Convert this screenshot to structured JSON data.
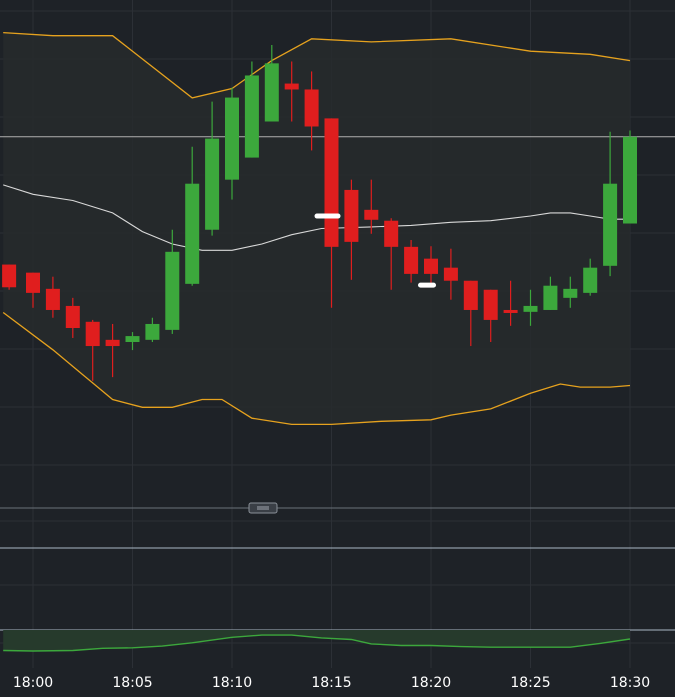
{
  "colors": {
    "background": "#1e2227",
    "band_fill": "#272a2d",
    "grid": "#2c3036",
    "up_candle": "#3ca83c",
    "down_candle": "#e01e1e",
    "bollinger_band": "#e6a21e",
    "moving_average": "#d9d9d9",
    "price_line": "#b0b0b0",
    "panel_line": "#aab8c6",
    "indicator_line": "#3ca83c",
    "indicator_fill": "#263a2c",
    "label": "#ffffff"
  },
  "chart_data": {
    "type": "candlestick",
    "x_ticks": [
      "18:00",
      "18:05",
      "18:10",
      "18:15",
      "18:20",
      "18:25",
      "18:30"
    ],
    "x_tick_minutes": [
      0,
      5,
      10,
      15,
      20,
      25,
      30
    ],
    "y_range": [
      0,
      100
    ],
    "horizontal_line": 70.5,
    "price_markers": [
      {
        "minute": 14.8,
        "value": 45.0
      },
      {
        "minute": 19.8,
        "value": 22.8
      }
    ],
    "candles": [
      {
        "minute": -1.2,
        "open": 29.4,
        "high": 29.4,
        "low": 21.3,
        "close": 22.1
      },
      {
        "minute": 0,
        "open": 26.8,
        "high": 26.8,
        "low": 15.5,
        "close": 20.3
      },
      {
        "minute": 1,
        "open": 21.6,
        "high": 25.5,
        "low": 12.3,
        "close": 14.8
      },
      {
        "minute": 2,
        "open": 16.1,
        "high": 18.7,
        "low": 5.8,
        "close": 9.0
      },
      {
        "minute": 3,
        "open": 11.0,
        "high": 11.6,
        "low": -8.0,
        "close": 3.2
      },
      {
        "minute": 4,
        "open": 5.2,
        "high": 10.3,
        "low": -6.8,
        "close": 3.2
      },
      {
        "minute": 5,
        "open": 4.5,
        "high": 7.7,
        "low": 1.9,
        "close": 6.4
      },
      {
        "minute": 6,
        "open": 5.2,
        "high": 12.3,
        "low": 4.5,
        "close": 10.3
      },
      {
        "minute": 7,
        "open": 8.4,
        "high": 40.6,
        "low": 7.1,
        "close": 33.5
      },
      {
        "minute": 8,
        "open": 23.2,
        "high": 67.3,
        "low": 22.6,
        "close": 55.4
      },
      {
        "minute": 9,
        "open": 40.6,
        "high": 81.8,
        "low": 38.7,
        "close": 69.9
      },
      {
        "minute": 10,
        "open": 56.7,
        "high": 86.3,
        "low": 50.3,
        "close": 83.1
      },
      {
        "minute": 11,
        "open": 63.8,
        "high": 94.7,
        "low": 63.8,
        "close": 90.2
      },
      {
        "minute": 12,
        "open": 75.4,
        "high": 100.0,
        "low": 75.4,
        "close": 94.1
      },
      {
        "minute": 13,
        "open": 87.6,
        "high": 94.7,
        "low": 75.4,
        "close": 85.7
      },
      {
        "minute": 14,
        "open": 85.7,
        "high": 91.5,
        "low": 66.1,
        "close": 73.8
      },
      {
        "minute": 15,
        "open": 76.4,
        "high": 76.4,
        "low": 15.5,
        "close": 35.1
      },
      {
        "minute": 16,
        "open": 53.4,
        "high": 56.7,
        "low": 24.5,
        "close": 36.7
      },
      {
        "minute": 17,
        "open": 47.0,
        "high": 56.7,
        "low": 39.3,
        "close": 43.8
      },
      {
        "minute": 18,
        "open": 43.5,
        "high": 44.3,
        "low": 21.3,
        "close": 35.1
      },
      {
        "minute": 19,
        "open": 35.1,
        "high": 37.3,
        "low": 23.6,
        "close": 26.4
      },
      {
        "minute": 20,
        "open": 31.3,
        "high": 35.3,
        "low": 22.6,
        "close": 26.4
      },
      {
        "minute": 21,
        "open": 28.4,
        "high": 34.5,
        "low": 18.1,
        "close": 24.2
      },
      {
        "minute": 22,
        "open": 24.2,
        "high": 24.2,
        "low": 3.2,
        "close": 14.8
      },
      {
        "minute": 23,
        "open": 21.3,
        "high": 21.3,
        "low": 4.5,
        "close": 11.6
      },
      {
        "minute": 24,
        "open": 14.8,
        "high": 24.2,
        "low": 9.7,
        "close": 14.2
      },
      {
        "minute": 25,
        "open": 14.2,
        "high": 21.3,
        "low": 9.7,
        "close": 16.1
      },
      {
        "minute": 26,
        "open": 14.8,
        "high": 25.5,
        "low": 14.8,
        "close": 22.6
      },
      {
        "minute": 27,
        "open": 18.7,
        "high": 25.5,
        "low": 15.5,
        "close": 21.6
      },
      {
        "minute": 28,
        "open": 20.3,
        "high": 31.3,
        "low": 19.4,
        "close": 28.4
      },
      {
        "minute": 29,
        "open": 29.0,
        "high": 72.1,
        "low": 25.7,
        "close": 55.4
      },
      {
        "minute": 30,
        "open": 42.6,
        "high": 72.5,
        "low": 42.6,
        "close": 70.5
      }
    ],
    "upper_band": [
      [
        -1.5,
        104.0
      ],
      [
        1.0,
        103.0
      ],
      [
        4.0,
        103.0
      ],
      [
        8.0,
        83.0
      ],
      [
        10.0,
        86.0
      ],
      [
        12.0,
        95.0
      ],
      [
        14.0,
        102.0
      ],
      [
        17.0,
        101.0
      ],
      [
        21.0,
        102.0
      ],
      [
        25.0,
        98.0
      ],
      [
        28.0,
        97.0
      ],
      [
        30.0,
        95.0
      ]
    ],
    "lower_band": [
      [
        -1.5,
        14.0
      ],
      [
        1.0,
        2.0
      ],
      [
        2.5,
        -6.0
      ],
      [
        4.0,
        -14.0
      ],
      [
        5.5,
        -16.5
      ],
      [
        7.0,
        -16.5
      ],
      [
        8.5,
        -14.0
      ],
      [
        9.5,
        -14.0
      ],
      [
        11.0,
        -20.0
      ],
      [
        13.0,
        -22.0
      ],
      [
        15.0,
        -22.0
      ],
      [
        17.5,
        -21.0
      ],
      [
        20.0,
        -20.5
      ],
      [
        21.0,
        -19.0
      ],
      [
        23.0,
        -17.0
      ],
      [
        25.0,
        -12.0
      ],
      [
        26.5,
        -9.0
      ],
      [
        27.5,
        -10.0
      ],
      [
        29.0,
        -10.0
      ],
      [
        30.0,
        -9.5
      ]
    ],
    "moving_average": [
      [
        -1.5,
        55.0
      ],
      [
        0.0,
        52.0
      ],
      [
        2.0,
        50.0
      ],
      [
        4.0,
        46.0
      ],
      [
        5.5,
        40.0
      ],
      [
        7.0,
        36.0
      ],
      [
        8.5,
        34.0
      ],
      [
        10.0,
        34.0
      ],
      [
        11.5,
        36.0
      ],
      [
        13.0,
        39.0
      ],
      [
        14.5,
        41.0
      ],
      [
        17.0,
        41.5
      ],
      [
        19.0,
        42.0
      ],
      [
        21.0,
        43.0
      ],
      [
        23.0,
        43.5
      ],
      [
        25.0,
        45.0
      ],
      [
        26.0,
        46.0
      ],
      [
        27.0,
        46.0
      ],
      [
        28.0,
        45.0
      ],
      [
        29.0,
        44.0
      ],
      [
        30.0,
        44.0
      ]
    ],
    "indicator_line": [
      [
        -1.5,
        10
      ],
      [
        0.0,
        9
      ],
      [
        2.0,
        10
      ],
      [
        3.5,
        14
      ],
      [
        5.0,
        15
      ],
      [
        6.5,
        18
      ],
      [
        8.0,
        24
      ],
      [
        10.0,
        34
      ],
      [
        11.5,
        38
      ],
      [
        13.0,
        38
      ],
      [
        14.5,
        33
      ],
      [
        16.0,
        30
      ],
      [
        17.0,
        22
      ],
      [
        18.5,
        19
      ],
      [
        20.0,
        19
      ],
      [
        21.5,
        17
      ],
      [
        23.0,
        16
      ],
      [
        25.0,
        16
      ],
      [
        27.0,
        16
      ],
      [
        28.5,
        23
      ],
      [
        30.0,
        31
      ]
    ]
  }
}
